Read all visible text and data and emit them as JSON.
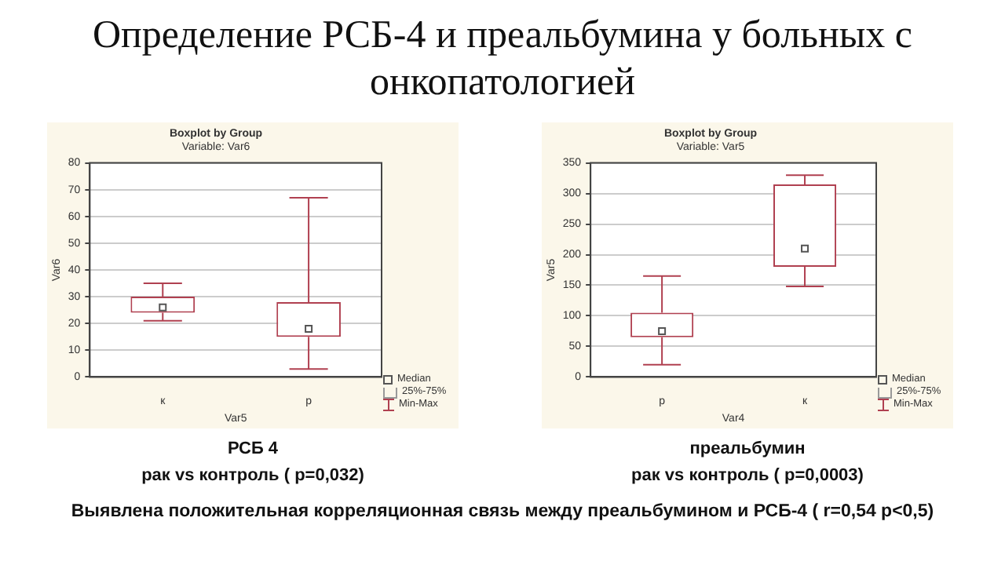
{
  "chart_data": [
    {
      "type": "other",
      "title": "Определение  РСБ-4 и преальбумина у больных с онкопатологией",
      "annotations": [
        "Выявлена положительная корреляционная связь между преальбумином и РСБ-4 ( r=0,54   p<0,5)"
      ]
    },
    {
      "type": "box",
      "title": "Boxplot by Group",
      "subtitle": "Variable: Var6",
      "xlabel": "Var5",
      "ylabel": "Var6",
      "categories": [
        "к",
        "р"
      ],
      "color": "#b04050",
      "boxes": [
        {
          "low": 21,
          "q1": 24,
          "median": 26,
          "q3": 30,
          "high": 35
        },
        {
          "low": 3,
          "q1": 15,
          "median": 18,
          "q3": 28,
          "high": 67
        }
      ],
      "ylim": [
        0,
        80
      ],
      "yticks": [
        0,
        10,
        20,
        30,
        40,
        50,
        60,
        70,
        80
      ],
      "grid": "y",
      "annotations": [
        "РСБ 4",
        "рак vs контроль  ( p=0,032)",
        "Median",
        "25%-75%",
        "Min-Max"
      ]
    },
    {
      "type": "box",
      "title": "Boxplot by Group",
      "subtitle": "Variable: Var5",
      "xlabel": "Var4",
      "ylabel": "Var5",
      "categories": [
        "р",
        "к"
      ],
      "color": "#b04050",
      "boxes": [
        {
          "low": 20,
          "q1": 65,
          "median": 75,
          "q3": 105,
          "high": 165
        },
        {
          "low": 148,
          "q1": 180,
          "median": 210,
          "q3": 315,
          "high": 330
        }
      ],
      "ylim": [
        0,
        350
      ],
      "yticks": [
        0,
        50,
        100,
        150,
        200,
        250,
        300,
        350
      ],
      "grid": "y",
      "annotations": [
        "преальбумин",
        "рак vs контроль  ( p=0,0003)",
        "Median",
        "25%-75%",
        "Min-Max"
      ]
    }
  ]
}
